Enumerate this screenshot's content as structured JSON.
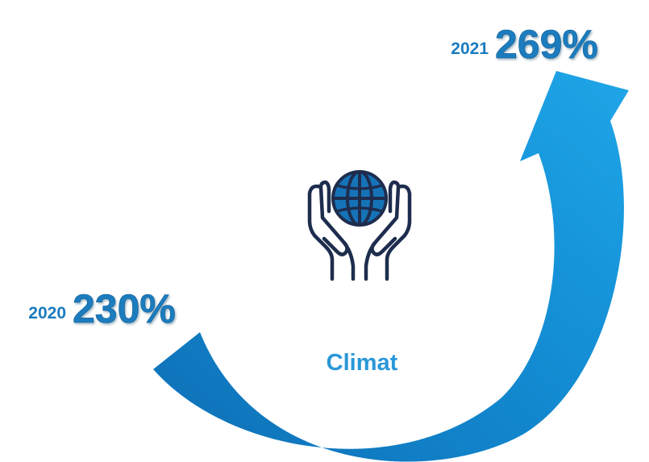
{
  "center_label": "Climat",
  "start": {
    "year": "2020",
    "value": "230%"
  },
  "end": {
    "year": "2021",
    "value": "269%"
  },
  "icon": "hands-holding-globe-icon",
  "colors": {
    "arrow_start": "#0E6FB6",
    "arrow_end": "#1DA3E6",
    "text_blue": "#1B7BBE",
    "label_blue": "#2A97D8",
    "icon_navy": "#1E2D4E",
    "icon_globe": "#1673B8"
  }
}
